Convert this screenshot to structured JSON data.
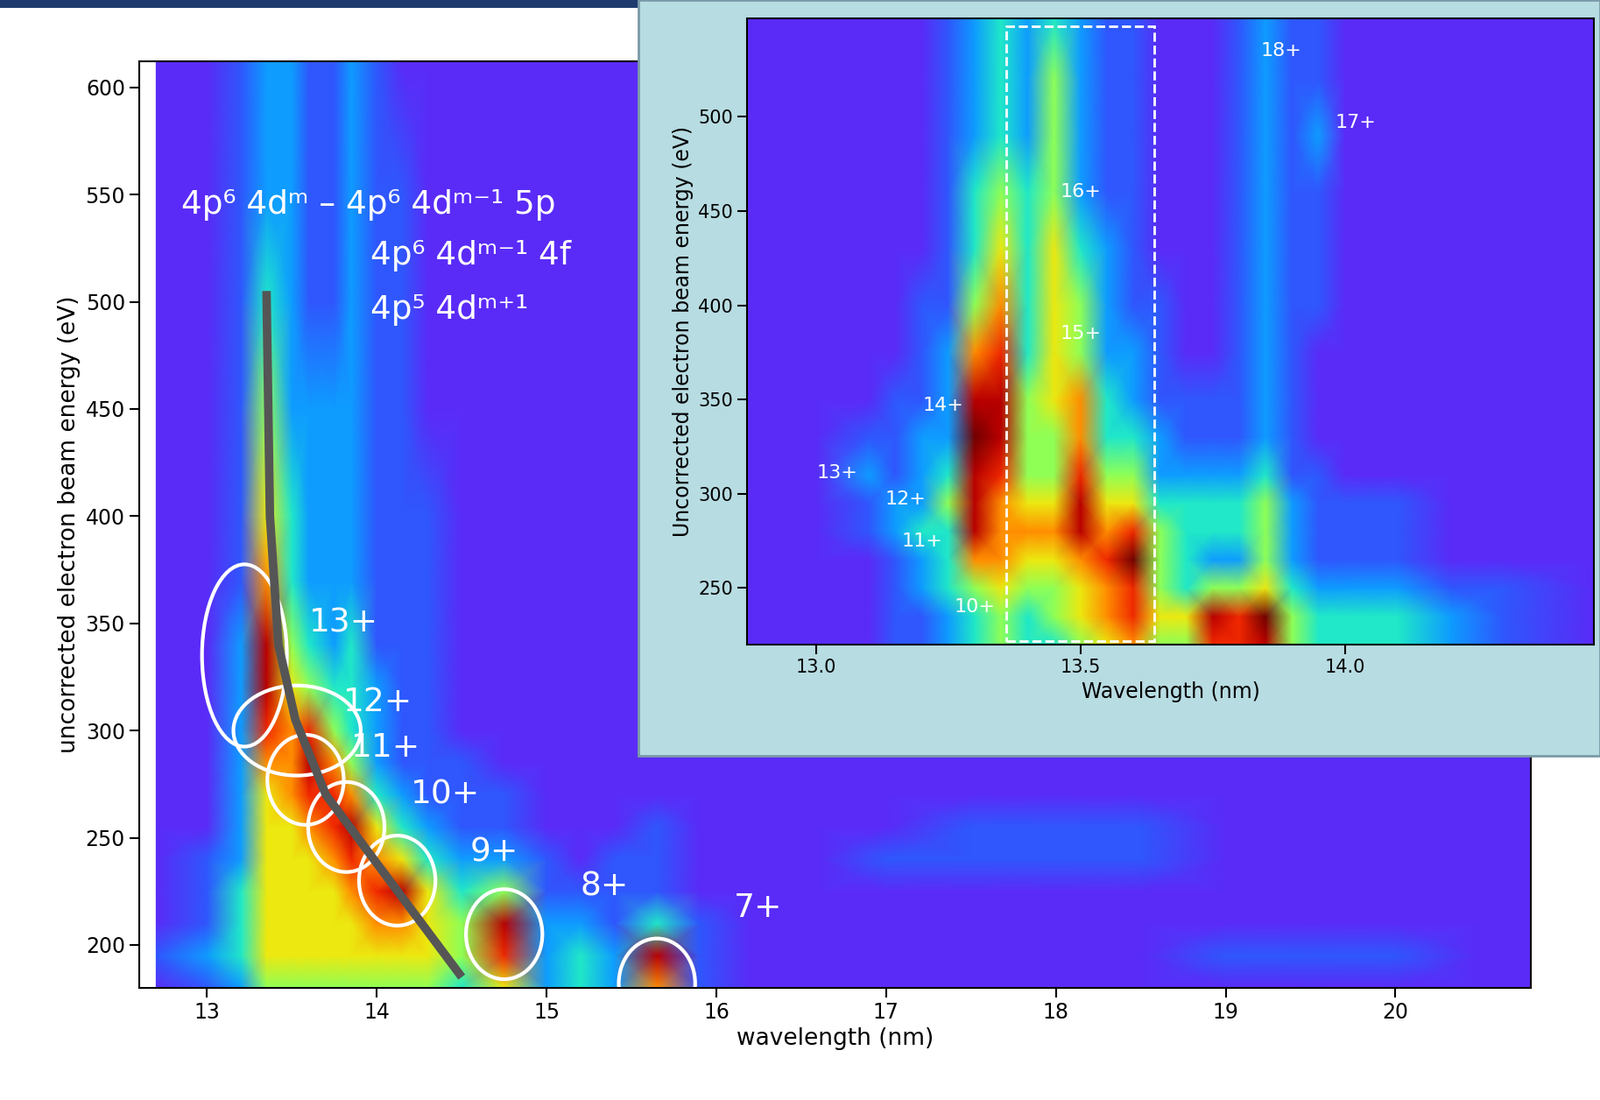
{
  "chart_data": [
    {
      "type": "heatmap",
      "xlabel": "wavelength (nm)",
      "ylabel": "uncorrected electron beam energy (eV)",
      "xlim": [
        12.6,
        20.8
      ],
      "ylim": [
        180,
        612
      ],
      "xticks": [
        13,
        14,
        15,
        16,
        17,
        18,
        19,
        20
      ],
      "yticks": [
        200,
        250,
        300,
        350,
        400,
        450,
        500,
        550,
        600
      ],
      "zlim": [
        0,
        10
      ],
      "x": [
        12.7,
        13.0,
        13.2,
        13.35,
        13.5,
        13.6,
        13.75,
        13.85,
        14.0,
        14.15,
        14.3,
        14.5,
        14.75,
        15.0,
        15.2,
        15.4,
        15.65,
        15.9,
        16.2,
        16.6,
        17.0,
        17.5,
        18.0,
        18.5,
        19.0,
        19.5,
        20.0,
        20.5,
        20.8
      ],
      "y": [
        180,
        195,
        210,
        225,
        240,
        255,
        270,
        285,
        300,
        320,
        340,
        370,
        400,
        450,
        500,
        550,
        612
      ],
      "cells": [
        [
          1,
          2,
          3,
          5,
          5,
          5,
          5,
          5,
          5,
          5,
          5,
          4,
          6,
          3,
          4,
          3,
          7,
          2,
          1,
          1,
          1,
          1,
          1,
          1,
          1,
          1,
          1,
          1,
          1
        ],
        [
          2,
          3,
          4,
          6,
          6,
          6,
          6,
          6,
          6,
          6,
          6,
          5,
          8,
          3,
          4,
          3,
          9,
          2,
          1,
          1,
          1,
          1,
          1,
          1,
          2,
          2,
          2,
          1,
          1
        ],
        [
          1,
          2,
          4,
          6,
          6,
          6,
          6,
          6,
          7,
          7,
          6,
          5,
          9,
          3,
          3,
          2,
          4,
          2,
          1,
          1,
          1,
          1,
          1,
          1,
          1,
          1,
          1,
          1,
          1
        ],
        [
          1,
          2,
          4,
          6,
          6,
          6,
          6,
          7,
          8,
          9,
          6,
          4,
          5,
          2,
          2,
          2,
          2,
          1,
          1,
          1,
          1,
          1,
          1,
          1,
          1,
          1,
          1,
          1,
          1
        ],
        [
          1,
          2,
          3,
          6,
          6,
          6,
          7,
          8,
          7,
          6,
          4,
          3,
          3,
          2,
          1,
          2,
          2,
          1,
          1,
          1,
          2,
          2,
          2,
          2,
          1,
          1,
          1,
          1,
          1
        ],
        [
          1,
          1,
          3,
          6,
          6,
          7,
          8,
          9,
          6,
          4,
          3,
          2,
          2,
          1,
          1,
          1,
          2,
          1,
          1,
          1,
          1,
          2,
          2,
          2,
          1,
          1,
          1,
          1,
          1
        ],
        [
          1,
          1,
          3,
          6,
          7,
          8,
          8,
          7,
          4,
          3,
          2,
          2,
          2,
          1,
          1,
          1,
          1,
          1,
          1,
          1,
          1,
          1,
          1,
          1,
          1,
          1,
          1,
          1,
          1
        ],
        [
          1,
          1,
          3,
          7,
          7,
          9,
          7,
          5,
          3,
          2,
          2,
          2,
          1,
          1,
          1,
          1,
          1,
          1,
          1,
          1,
          1,
          1,
          1,
          1,
          1,
          1,
          1,
          1,
          1
        ],
        [
          1,
          1,
          3,
          8,
          7,
          8,
          5,
          4,
          3,
          2,
          2,
          1,
          1,
          1,
          1,
          1,
          1,
          1,
          1,
          1,
          1,
          1,
          1,
          1,
          1,
          1,
          1,
          1,
          1
        ],
        [
          1,
          1,
          3,
          9,
          6,
          5,
          4,
          4,
          3,
          2,
          2,
          1,
          1,
          1,
          1,
          1,
          1,
          1,
          1,
          1,
          1,
          1,
          1,
          1,
          1,
          1,
          1,
          1,
          1
        ],
        [
          1,
          1,
          3,
          9,
          5,
          4,
          3,
          4,
          2,
          2,
          2,
          1,
          1,
          1,
          1,
          1,
          1,
          1,
          1,
          1,
          1,
          1,
          1,
          1,
          1,
          1,
          1,
          1,
          1
        ],
        [
          1,
          1,
          2,
          7,
          4,
          3,
          3,
          3,
          2,
          2,
          2,
          1,
          1,
          1,
          1,
          1,
          1,
          1,
          1,
          1,
          1,
          1,
          1,
          1,
          1,
          1,
          1,
          1,
          1
        ],
        [
          1,
          1,
          2,
          6,
          4,
          3,
          3,
          3,
          2,
          2,
          2,
          1,
          1,
          1,
          1,
          1,
          1,
          1,
          1,
          1,
          1,
          1,
          1,
          1,
          1,
          1,
          1,
          1,
          1
        ],
        [
          1,
          1,
          2,
          5,
          3,
          3,
          3,
          3,
          2,
          2,
          1,
          1,
          1,
          1,
          1,
          1,
          1,
          1,
          1,
          1,
          1,
          1,
          1,
          1,
          1,
          1,
          1,
          1,
          1
        ],
        [
          1,
          1,
          2,
          4,
          3,
          2,
          2,
          3,
          2,
          2,
          1,
          1,
          1,
          1,
          1,
          1,
          1,
          1,
          1,
          1,
          1,
          1,
          1,
          1,
          1,
          1,
          1,
          1,
          1
        ],
        [
          1,
          1,
          2,
          3,
          3,
          2,
          2,
          3,
          2,
          2,
          1,
          1,
          1,
          1,
          1,
          1,
          1,
          1,
          1,
          1,
          1,
          1,
          1,
          1,
          1,
          1,
          1,
          1,
          1
        ],
        [
          1,
          1,
          2,
          3,
          3,
          2,
          2,
          3,
          2,
          1,
          1,
          1,
          1,
          1,
          1,
          1,
          1,
          1,
          1,
          1,
          1,
          1,
          1,
          1,
          1,
          1,
          1,
          1,
          1
        ]
      ],
      "annotation_lines": [
        "4p⁶ 4dᵐ – 4p⁶ 4dᵐ⁻¹ 5p",
        "4p⁶ 4dᵐ⁻¹ 4f",
        "4p⁵ 4dᵐ⁺¹"
      ],
      "guide_line": {
        "x": [
          13.35,
          13.37,
          13.42,
          13.52,
          13.7,
          14.0,
          14.5
        ],
        "y": [
          505,
          400,
          340,
          305,
          270,
          238,
          185
        ],
        "color": "#555555"
      },
      "ellipses": [
        {
          "label": "13+",
          "x": 13.22,
          "y": 335,
          "width": 0.5,
          "height": 85,
          "label_at": [
            13.6,
            350
          ]
        },
        {
          "label": "12+",
          "x": 13.53,
          "y": 300,
          "width": 0.75,
          "height": 42,
          "label_at": [
            13.8,
            313
          ]
        },
        {
          "label": "11+",
          "x": 13.58,
          "y": 277,
          "width": 0.45,
          "height": 42,
          "label_at": [
            13.85,
            292
          ]
        },
        {
          "label": "10+",
          "x": 13.82,
          "y": 255,
          "width": 0.45,
          "height": 42,
          "label_at": [
            14.2,
            270
          ]
        },
        {
          "label": "9+",
          "x": 14.12,
          "y": 230,
          "width": 0.45,
          "height": 42,
          "label_at": [
            14.55,
            243
          ]
        },
        {
          "label": "8+",
          "x": 14.75,
          "y": 205,
          "width": 0.45,
          "height": 42,
          "label_at": [
            15.2,
            227
          ]
        },
        {
          "label": "7+",
          "x": 15.65,
          "y": 182,
          "width": 0.45,
          "height": 42,
          "label_at": [
            16.1,
            217
          ]
        }
      ]
    },
    {
      "type": "heatmap",
      "xlabel": "Wavelength (nm)",
      "ylabel": "Uncorrected electron beam energy (eV)",
      "xlim": [
        12.87,
        14.47
      ],
      "ylim": [
        220,
        552
      ],
      "xticks": [
        {
          "value": 13,
          "label": "13.0"
        },
        13.5,
        {
          "value": 14,
          "label": "14.0"
        }
      ],
      "yticks": [
        250,
        300,
        350,
        400,
        450,
        500
      ],
      "zlim": [
        0,
        10
      ],
      "x": [
        12.87,
        13.0,
        13.1,
        13.15,
        13.2,
        13.25,
        13.3,
        13.35,
        13.4,
        13.45,
        13.5,
        13.55,
        13.6,
        13.65,
        13.7,
        13.75,
        13.8,
        13.85,
        13.9,
        13.95,
        14.0,
        14.1,
        14.2,
        14.3,
        14.47
      ],
      "y": [
        220,
        235,
        250,
        265,
        280,
        295,
        310,
        330,
        350,
        375,
        400,
        430,
        460,
        490,
        520,
        552
      ],
      "cells": [
        [
          1,
          1,
          1,
          2,
          2,
          3,
          4,
          5,
          4,
          4,
          5,
          6,
          7,
          5,
          5,
          8,
          8,
          9,
          5,
          4,
          4,
          4,
          3,
          2,
          1
        ],
        [
          1,
          1,
          1,
          2,
          2,
          3,
          4,
          5,
          4,
          5,
          6,
          7,
          8,
          6,
          6,
          9,
          8,
          10,
          5,
          4,
          4,
          4,
          3,
          2,
          1
        ],
        [
          1,
          1,
          1,
          2,
          3,
          4,
          5,
          6,
          5,
          5,
          6,
          7,
          8,
          5,
          4,
          5,
          5,
          6,
          4,
          3,
          3,
          3,
          2,
          2,
          1
        ],
        [
          1,
          1,
          1,
          2,
          3,
          4,
          7,
          7,
          6,
          6,
          7,
          8,
          10,
          5,
          4,
          3,
          3,
          5,
          3,
          2,
          2,
          2,
          1,
          1,
          1
        ],
        [
          1,
          1,
          2,
          3,
          4,
          4,
          9,
          7,
          7,
          7,
          9,
          7,
          8,
          5,
          4,
          4,
          4,
          5,
          3,
          2,
          2,
          2,
          1,
          1,
          1
        ],
        [
          1,
          1,
          2,
          3,
          3,
          5,
          9,
          7,
          6,
          6,
          9,
          6,
          6,
          4,
          4,
          4,
          4,
          5,
          3,
          2,
          2,
          2,
          1,
          1,
          1
        ],
        [
          1,
          1,
          3,
          2,
          3,
          4,
          9,
          8,
          5,
          5,
          8,
          5,
          5,
          3,
          3,
          3,
          3,
          4,
          2,
          2,
          1,
          1,
          1,
          1,
          1
        ],
        [
          1,
          1,
          2,
          2,
          3,
          3,
          10,
          9,
          5,
          5,
          7,
          4,
          4,
          3,
          2,
          2,
          2,
          3,
          2,
          1,
          1,
          1,
          1,
          1,
          1
        ],
        [
          1,
          1,
          1,
          2,
          2,
          3,
          9,
          9,
          5,
          6,
          7,
          4,
          3,
          2,
          2,
          2,
          2,
          3,
          2,
          1,
          1,
          1,
          1,
          1,
          1
        ],
        [
          1,
          1,
          1,
          1,
          2,
          3,
          7,
          8,
          4,
          6,
          5,
          3,
          3,
          2,
          1,
          1,
          2,
          3,
          2,
          1,
          1,
          1,
          1,
          1,
          1
        ],
        [
          1,
          1,
          1,
          1,
          2,
          2,
          5,
          7,
          4,
          6,
          5,
          3,
          2,
          2,
          1,
          1,
          2,
          3,
          2,
          2,
          1,
          1,
          1,
          1,
          1
        ],
        [
          1,
          1,
          1,
          1,
          1,
          2,
          4,
          6,
          4,
          6,
          4,
          3,
          2,
          1,
          1,
          1,
          2,
          3,
          2,
          2,
          1,
          1,
          1,
          1,
          1
        ],
        [
          1,
          1,
          1,
          1,
          1,
          2,
          4,
          5,
          4,
          5,
          3,
          2,
          2,
          1,
          1,
          1,
          2,
          3,
          2,
          2,
          1,
          1,
          1,
          1,
          1
        ],
        [
          1,
          1,
          1,
          1,
          1,
          2,
          3,
          4,
          3,
          5,
          3,
          2,
          2,
          1,
          1,
          1,
          2,
          3,
          2,
          3,
          1,
          1,
          1,
          1,
          1
        ],
        [
          1,
          1,
          1,
          1,
          1,
          2,
          3,
          4,
          3,
          5,
          3,
          2,
          2,
          1,
          1,
          1,
          2,
          3,
          2,
          2,
          1,
          1,
          1,
          1,
          1
        ],
        [
          1,
          1,
          1,
          1,
          1,
          2,
          3,
          4,
          3,
          4,
          3,
          2,
          2,
          1,
          1,
          1,
          2,
          3,
          2,
          2,
          1,
          1,
          1,
          1,
          1
        ]
      ],
      "labels": [
        {
          "text": "18+",
          "x": 13.88,
          "y": 535
        },
        {
          "text": "17+",
          "x": 14.02,
          "y": 497
        },
        {
          "text": "16+",
          "x": 13.5,
          "y": 460
        },
        {
          "text": "15+",
          "x": 13.5,
          "y": 385
        },
        {
          "text": "14+",
          "x": 13.24,
          "y": 347
        },
        {
          "text": "13+",
          "x": 13.04,
          "y": 311
        },
        {
          "text": "12+",
          "x": 13.17,
          "y": 297
        },
        {
          "text": "11+",
          "x": 13.2,
          "y": 275
        },
        {
          "text": "10+",
          "x": 13.3,
          "y": 240
        }
      ],
      "highlight_box": {
        "x": [
          13.36,
          13.64
        ],
        "y": [
          222,
          548
        ]
      }
    }
  ]
}
